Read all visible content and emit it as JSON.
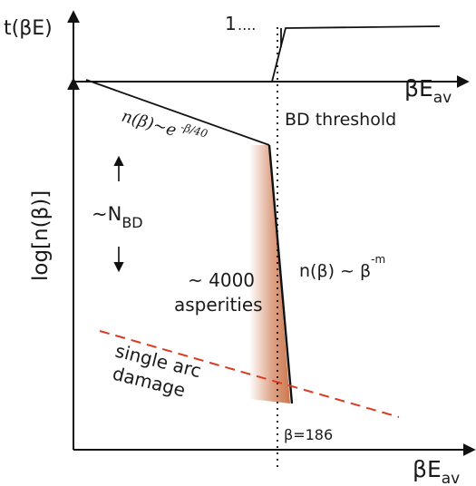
{
  "top_plot": {
    "y_label": "t(βE)",
    "x_label_main": "βE",
    "x_label_sub": "av",
    "level_label": "1",
    "level_dots": "....",
    "line_color": "#111111"
  },
  "main_plot": {
    "y_label": "log[n(β)]",
    "x_label_main": "βE",
    "x_label_sub": "av",
    "threshold_label": "BD  threshold",
    "exp_law_prefix": "n(β)~e",
    "exp_law_exponent": "-β/40",
    "power_law_prefix": "n(β)  ~  β",
    "power_law_exponent": "-m",
    "n_bd_prefix": "~N",
    "n_bd_sub": "BD",
    "asperities_line1": "~  4000",
    "asperities_line2": "asperities",
    "single_arc_line1": "single arc",
    "single_arc_line2": "damage",
    "beta_marker": "β=186",
    "shade_color": "#c8683a",
    "dashed_color": "#d83a22",
    "line_color": "#111111"
  }
}
